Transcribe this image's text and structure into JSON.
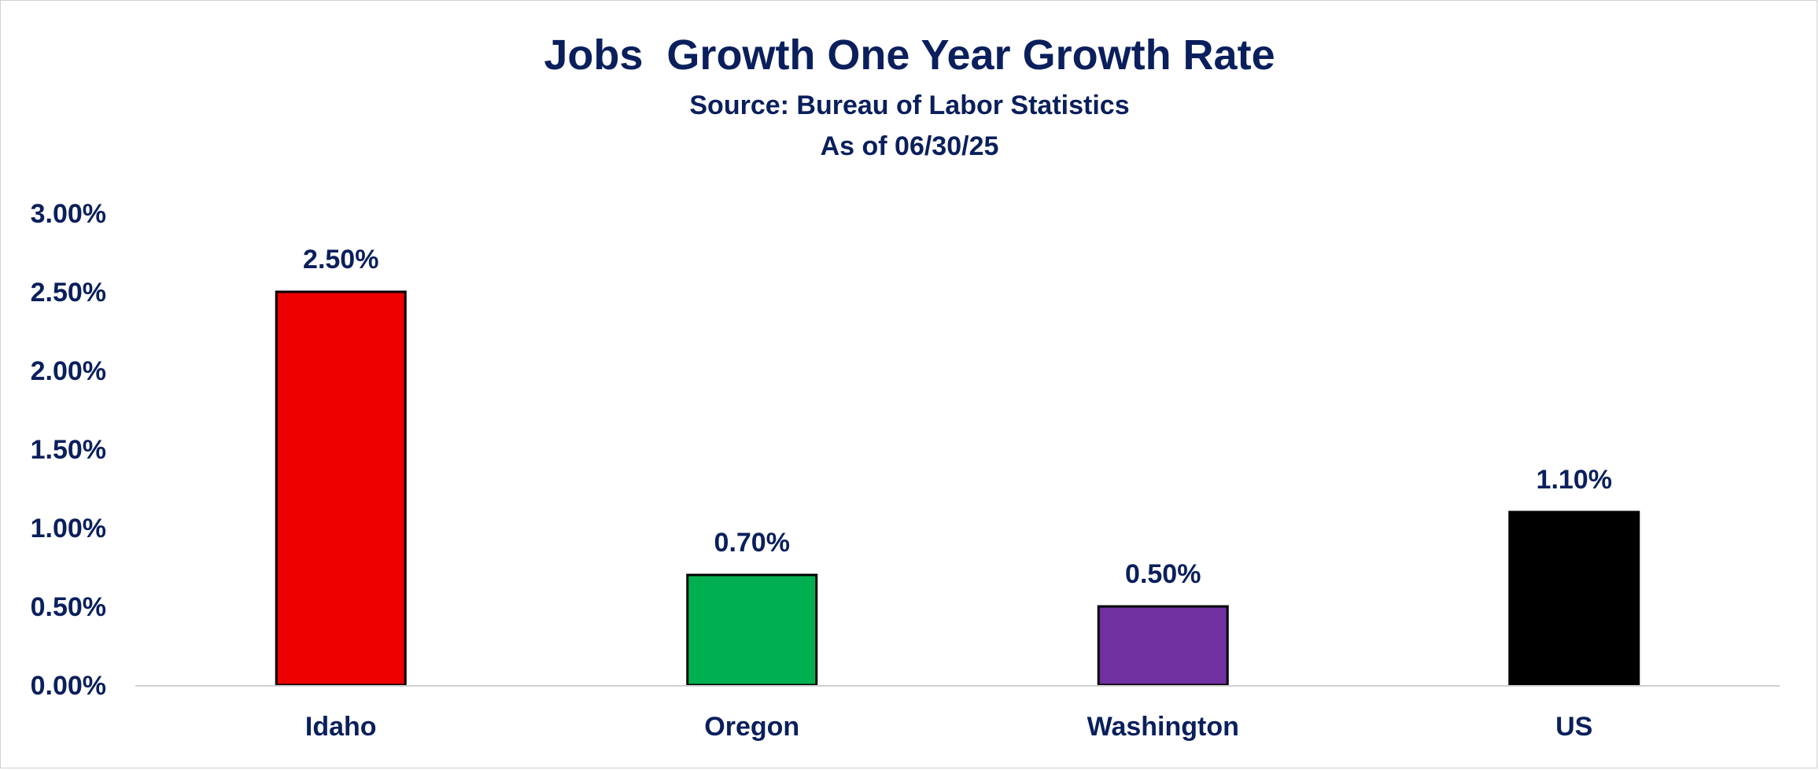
{
  "chart_data": {
    "type": "bar",
    "title": "Jobs  Growth One Year Growth Rate",
    "subtitle": "Source: Bureau of Labor Statistics",
    "subtitle2": "As of 06/30/25",
    "xlabel": "",
    "ylabel": "",
    "categories": [
      "Idaho",
      "Oregon",
      "Washington",
      "US"
    ],
    "values": [
      2.5,
      0.7,
      0.5,
      1.1
    ],
    "data_labels": [
      "2.50%",
      "0.70%",
      "0.50%",
      "1.10%"
    ],
    "bar_colors": [
      "#ee0000",
      "#00b050",
      "#7030a0",
      "#000000"
    ],
    "ylim": [
      0,
      3
    ],
    "yticks": [
      0,
      0.5,
      1,
      1.5,
      2,
      2.5,
      3
    ],
    "ytick_labels": [
      "0.00%",
      "0.50%",
      "1.00%",
      "1.50%",
      "2.00%",
      "2.50%",
      "3.00%"
    ],
    "grid": false,
    "legend": "none"
  }
}
